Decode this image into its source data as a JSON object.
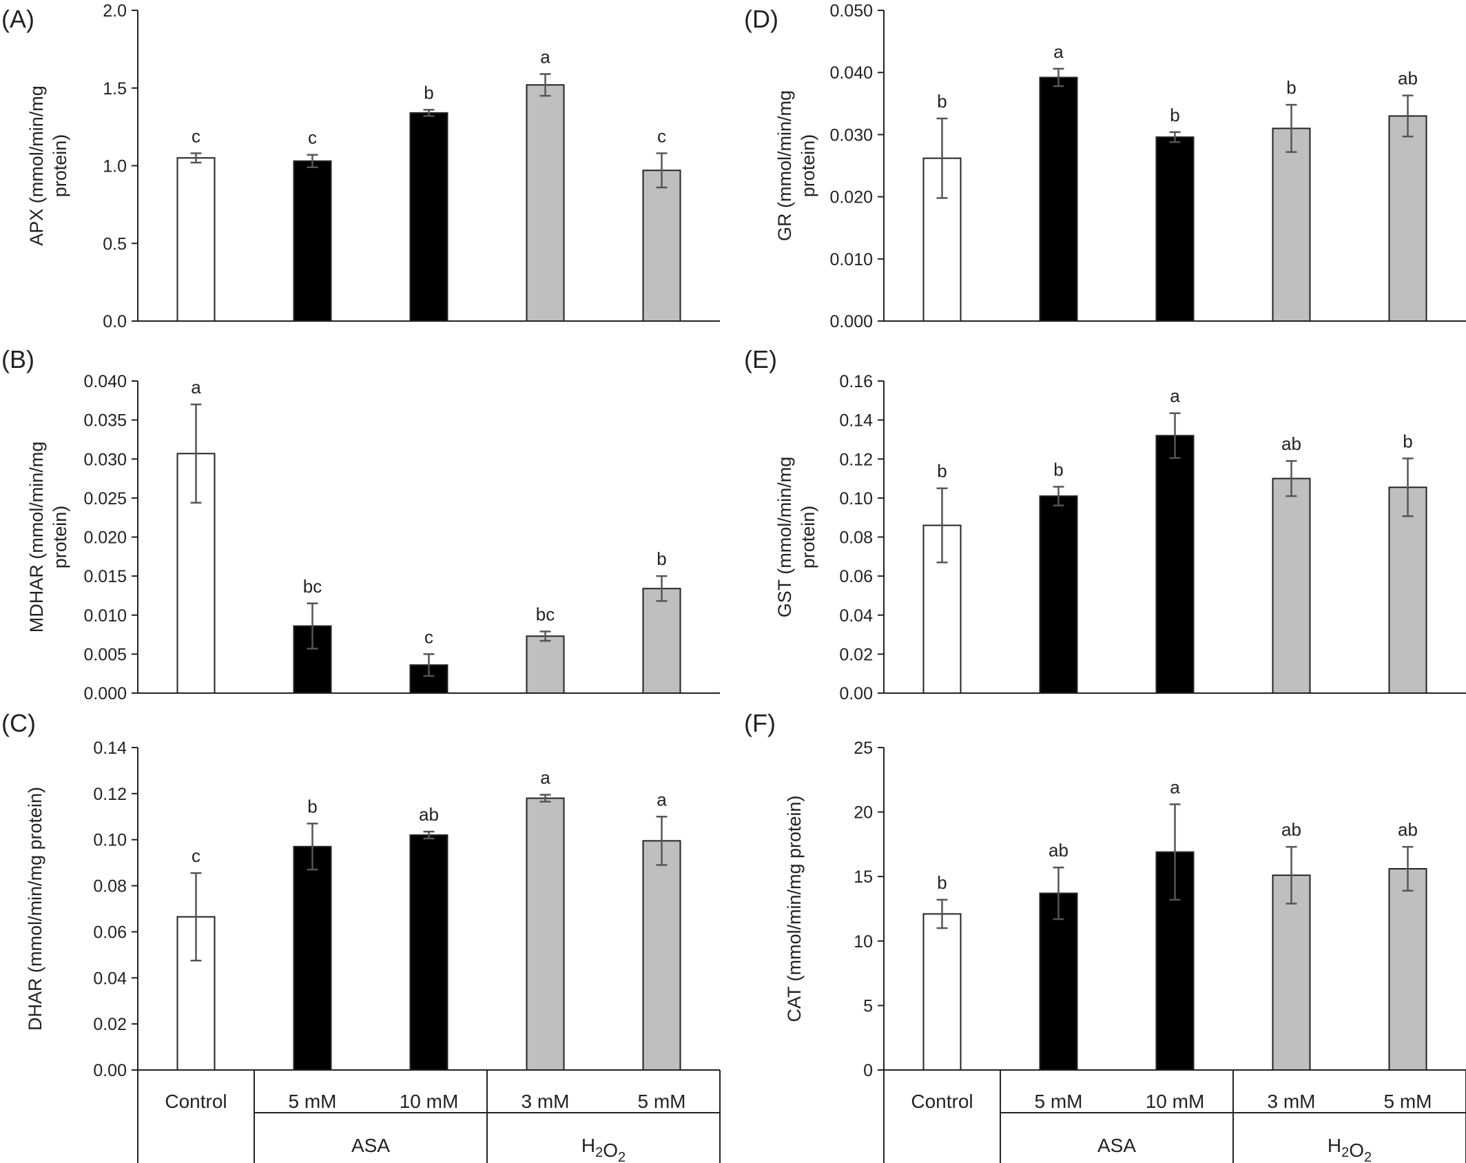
{
  "categories": [
    "Control",
    "5 mM",
    "10 mM",
    "3 mM",
    "5 mM"
  ],
  "groups": [
    {
      "label": "ASA"
    },
    {
      "label": "H2O2"
    }
  ],
  "colors": {
    "control": "#ffffff",
    "asa": "#000000",
    "h2o2": "#bfbfbf",
    "stroke": "#222222",
    "error": "#555555"
  },
  "chart_data": [
    {
      "type": "bar",
      "panel": "(A)",
      "ylabel": [
        "APX (mmol/min/mg",
        "protein)"
      ],
      "ylim": [
        0,
        2.0
      ],
      "yticks": [
        "0.0",
        "0.5",
        "1.0",
        "1.5",
        "2.0"
      ],
      "values": [
        1.05,
        1.03,
        1.34,
        1.52,
        0.97
      ],
      "errors": [
        0.03,
        0.04,
        0.02,
        0.07,
        0.11
      ],
      "sig": [
        "c",
        "c",
        "b",
        "a",
        "c"
      ]
    },
    {
      "type": "bar",
      "panel": "(B)",
      "ylabel": [
        "MDHAR (mmol/min/mg",
        "protein)"
      ],
      "ylim": [
        0,
        0.04
      ],
      "yticks": [
        "0.000",
        "0.005",
        "0.010",
        "0.015",
        "0.020",
        "0.025",
        "0.030",
        "0.035",
        "0.040"
      ],
      "values": [
        0.0307,
        0.0086,
        0.0036,
        0.0073,
        0.0134
      ],
      "errors": [
        0.0063,
        0.0029,
        0.0014,
        0.0006,
        0.0016
      ],
      "sig": [
        "a",
        "bc",
        "c",
        "bc",
        "b"
      ]
    },
    {
      "type": "bar",
      "panel": "(C)",
      "ylabel": [
        "DHAR (mmol/min/mg protein)"
      ],
      "ylim": [
        0,
        0.14
      ],
      "yticks": [
        "0.00",
        "0.02",
        "0.04",
        "0.06",
        "0.08",
        "0.10",
        "0.12",
        "0.14"
      ],
      "values": [
        0.0665,
        0.097,
        0.102,
        0.118,
        0.0995
      ],
      "errors": [
        0.019,
        0.01,
        0.0015,
        0.0015,
        0.0105
      ],
      "sig": [
        "c",
        "b",
        "ab",
        "a",
        "a"
      ]
    },
    {
      "type": "bar",
      "panel": "(D)",
      "ylabel": [
        "GR (mmol/min/mg",
        "protein)"
      ],
      "ylim": [
        0,
        0.05
      ],
      "yticks": [
        "0.000",
        "0.010",
        "0.020",
        "0.030",
        "0.040",
        "0.050"
      ],
      "values": [
        0.0262,
        0.0392,
        0.0296,
        0.031,
        0.033
      ],
      "errors": [
        0.0064,
        0.0014,
        0.0008,
        0.0038,
        0.0033
      ],
      "sig": [
        "b",
        "a",
        "b",
        "b",
        "ab"
      ]
    },
    {
      "type": "bar",
      "panel": "(E)",
      "ylabel": [
        "GST (mmol/min/mg",
        "protein)"
      ],
      "ylim": [
        0,
        0.16
      ],
      "yticks": [
        "0.00",
        "0.02",
        "0.04",
        "0.06",
        "0.08",
        "0.10",
        "0.12",
        "0.14",
        "0.16"
      ],
      "values": [
        0.086,
        0.101,
        0.132,
        0.11,
        0.1055
      ],
      "errors": [
        0.019,
        0.0048,
        0.0115,
        0.009,
        0.0148
      ],
      "sig": [
        "b",
        "b",
        "a",
        "ab",
        "b"
      ]
    },
    {
      "type": "bar",
      "panel": "(F)",
      "ylabel": [
        "CAT (mmol/min/mg protein)"
      ],
      "ylim": [
        0,
        25
      ],
      "yticks": [
        "0",
        "5",
        "10",
        "15",
        "20",
        "25"
      ],
      "values": [
        12.1,
        13.7,
        16.9,
        15.1,
        15.6
      ],
      "errors": [
        1.1,
        2.0,
        3.7,
        2.2,
        1.7
      ],
      "sig": [
        "b",
        "ab",
        "a",
        "ab",
        "ab"
      ]
    }
  ]
}
